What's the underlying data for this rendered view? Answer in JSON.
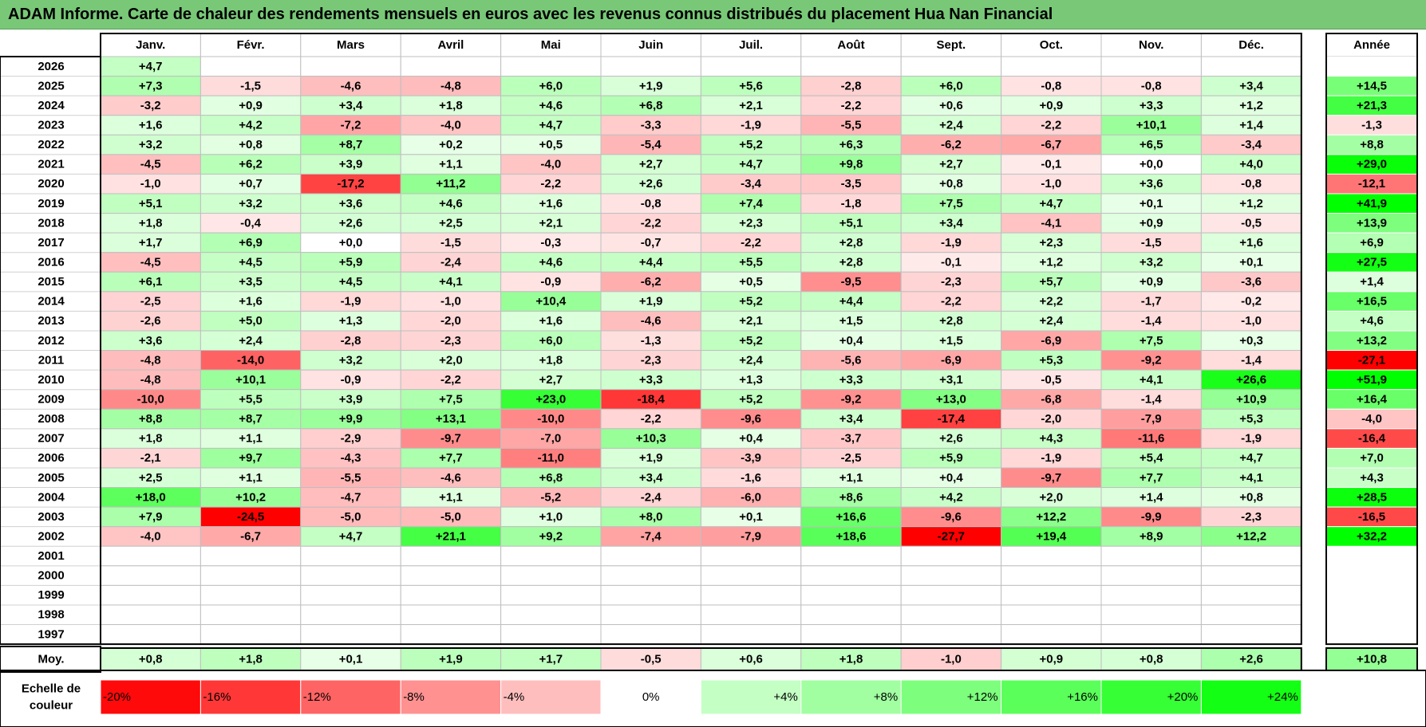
{
  "title": "ADAM Informe. Carte de chaleur des rendements mensuels en euros avec les revenus connus distribués du placement Hua Nan Financial",
  "chart_data": {
    "type": "heatmap",
    "months": [
      "Janv.",
      "Févr.",
      "Mars",
      "Avril",
      "Mai",
      "Juin",
      "Juil.",
      "Août",
      "Sept.",
      "Oct.",
      "Nov.",
      "Déc."
    ],
    "year_header": "Année",
    "rows": [
      {
        "year": "2026",
        "values": [
          "+4,7",
          "",
          "",
          "",
          "",
          "",
          "",
          "",
          "",
          "",
          "",
          ""
        ],
        "annual": ""
      },
      {
        "year": "2025",
        "values": [
          "+7,3",
          "-1,5",
          "-4,6",
          "-4,8",
          "+6,0",
          "+1,9",
          "+5,6",
          "-2,8",
          "+6,0",
          "-0,8",
          "-0,8",
          "+3,4"
        ],
        "annual": "+14,5"
      },
      {
        "year": "2024",
        "values": [
          "-3,2",
          "+0,9",
          "+3,4",
          "+1,8",
          "+4,6",
          "+6,8",
          "+2,1",
          "-2,2",
          "+0,6",
          "+0,9",
          "+3,3",
          "+1,2"
        ],
        "annual": "+21,3"
      },
      {
        "year": "2023",
        "values": [
          "+1,6",
          "+4,2",
          "-7,2",
          "-4,0",
          "+4,7",
          "-3,3",
          "-1,9",
          "-5,5",
          "+2,4",
          "-2,2",
          "+10,1",
          "+1,4"
        ],
        "annual": "-1,3"
      },
      {
        "year": "2022",
        "values": [
          "+3,2",
          "+0,8",
          "+8,7",
          "+0,2",
          "+0,5",
          "-5,4",
          "+5,2",
          "+6,3",
          "-6,2",
          "-6,7",
          "+6,5",
          "-3,4"
        ],
        "annual": "+8,8"
      },
      {
        "year": "2021",
        "values": [
          "-4,5",
          "+6,2",
          "+3,9",
          "+1,1",
          "-4,0",
          "+2,7",
          "+4,7",
          "+9,8",
          "+2,7",
          "-0,1",
          "+0,0",
          "+4,0"
        ],
        "annual": "+29,0"
      },
      {
        "year": "2020",
        "values": [
          "-1,0",
          "+0,7",
          "-17,2",
          "+11,2",
          "-2,2",
          "+2,6",
          "-3,4",
          "-3,5",
          "+0,8",
          "-1,0",
          "+3,6",
          "-0,8"
        ],
        "annual": "-12,1"
      },
      {
        "year": "2019",
        "values": [
          "+5,1",
          "+3,2",
          "+3,6",
          "+4,6",
          "+1,6",
          "-0,8",
          "+7,4",
          "-1,8",
          "+7,5",
          "+4,7",
          "+0,1",
          "+1,2"
        ],
        "annual": "+41,9"
      },
      {
        "year": "2018",
        "values": [
          "+1,8",
          "-0,4",
          "+2,6",
          "+2,5",
          "+2,1",
          "-2,2",
          "+2,3",
          "+5,1",
          "+3,4",
          "-4,1",
          "+0,9",
          "-0,5"
        ],
        "annual": "+13,9"
      },
      {
        "year": "2017",
        "values": [
          "+1,7",
          "+6,9",
          "+0,0",
          "-1,5",
          "-0,3",
          "-0,7",
          "-2,2",
          "+2,8",
          "-1,9",
          "+2,3",
          "-1,5",
          "+1,6"
        ],
        "annual": "+6,9"
      },
      {
        "year": "2016",
        "values": [
          "-4,5",
          "+4,5",
          "+5,9",
          "-2,4",
          "+4,6",
          "+4,4",
          "+5,5",
          "+2,8",
          "-0,1",
          "+1,2",
          "+3,2",
          "+0,1"
        ],
        "annual": "+27,5"
      },
      {
        "year": "2015",
        "values": [
          "+6,1",
          "+3,5",
          "+4,5",
          "+4,1",
          "-0,9",
          "-6,2",
          "+0,5",
          "-9,5",
          "-2,3",
          "+5,7",
          "+0,9",
          "-3,6"
        ],
        "annual": "+1,4"
      },
      {
        "year": "2014",
        "values": [
          "-2,5",
          "+1,6",
          "-1,9",
          "-1,0",
          "+10,4",
          "+1,9",
          "+5,2",
          "+4,4",
          "-2,2",
          "+2,2",
          "-1,7",
          "-0,2"
        ],
        "annual": "+16,5"
      },
      {
        "year": "2013",
        "values": [
          "-2,6",
          "+5,0",
          "+1,3",
          "-2,0",
          "+1,6",
          "-4,6",
          "+2,1",
          "+1,5",
          "+2,8",
          "+2,4",
          "-1,4",
          "-1,0"
        ],
        "annual": "+4,6"
      },
      {
        "year": "2012",
        "values": [
          "+3,6",
          "+2,4",
          "-2,8",
          "-2,3",
          "+6,0",
          "-1,3",
          "+5,2",
          "+0,4",
          "+1,5",
          "-6,9",
          "+7,5",
          "+0,3"
        ],
        "annual": "+13,2"
      },
      {
        "year": "2011",
        "values": [
          "-4,8",
          "-14,0",
          "+3,2",
          "+2,0",
          "+1,8",
          "-2,3",
          "+2,4",
          "-5,6",
          "-6,9",
          "+5,3",
          "-9,2",
          "-1,4"
        ],
        "annual": "-27,1"
      },
      {
        "year": "2010",
        "values": [
          "-4,8",
          "+10,1",
          "-0,9",
          "-2,2",
          "+2,7",
          "+3,3",
          "+1,3",
          "+3,3",
          "+3,1",
          "-0,5",
          "+4,1",
          "+26,6"
        ],
        "annual": "+51,9"
      },
      {
        "year": "2009",
        "values": [
          "-10,0",
          "+5,5",
          "+3,9",
          "+7,5",
          "+23,0",
          "-18,4",
          "+5,2",
          "-9,2",
          "+13,0",
          "-6,8",
          "-1,4",
          "+10,9"
        ],
        "annual": "+16,4"
      },
      {
        "year": "2008",
        "values": [
          "+8,8",
          "+8,7",
          "+9,9",
          "+13,1",
          "-10,0",
          "-2,2",
          "-9,6",
          "+3,4",
          "-17,4",
          "-2,0",
          "-7,9",
          "+5,3"
        ],
        "annual": "-4,0"
      },
      {
        "year": "2007",
        "values": [
          "+1,8",
          "+1,1",
          "-2,9",
          "-9,7",
          "-7,0",
          "+10,3",
          "+0,4",
          "-3,7",
          "+2,6",
          "+4,3",
          "-11,6",
          "-1,9"
        ],
        "annual": "-16,4"
      },
      {
        "year": "2006",
        "values": [
          "-2,1",
          "+9,7",
          "-4,3",
          "+7,7",
          "-11,0",
          "+1,9",
          "-3,9",
          "-2,5",
          "+5,9",
          "-1,9",
          "+5,4",
          "+4,7"
        ],
        "annual": "+7,0"
      },
      {
        "year": "2005",
        "values": [
          "+2,5",
          "+1,1",
          "-5,5",
          "-4,6",
          "+6,8",
          "+3,4",
          "-1,6",
          "+1,1",
          "+0,4",
          "-9,7",
          "+7,7",
          "+4,1"
        ],
        "annual": "+4,3"
      },
      {
        "year": "2004",
        "values": [
          "+18,0",
          "+10,2",
          "-4,7",
          "+1,1",
          "-5,2",
          "-2,4",
          "-6,0",
          "+8,6",
          "+4,2",
          "+2,0",
          "+1,4",
          "+0,8"
        ],
        "annual": "+28,5"
      },
      {
        "year": "2003",
        "values": [
          "+7,9",
          "-24,5",
          "-5,0",
          "-5,0",
          "+1,0",
          "+8,0",
          "+0,1",
          "+16,6",
          "-9,6",
          "+12,2",
          "-9,9",
          "-2,3"
        ],
        "annual": "-16,5"
      },
      {
        "year": "2002",
        "values": [
          "-4,0",
          "-6,7",
          "+4,7",
          "+21,1",
          "+9,2",
          "-7,4",
          "-7,9",
          "+18,6",
          "-27,7",
          "+19,4",
          "+8,9",
          "+12,2"
        ],
        "annual": "+32,2"
      },
      {
        "year": "2001",
        "values": [
          "",
          "",
          "",
          "",
          "",
          "",
          "",
          "",
          "",
          "",
          "",
          ""
        ],
        "annual": ""
      },
      {
        "year": "2000",
        "values": [
          "",
          "",
          "",
          "",
          "",
          "",
          "",
          "",
          "",
          "",
          "",
          ""
        ],
        "annual": ""
      },
      {
        "year": "1999",
        "values": [
          "",
          "",
          "",
          "",
          "",
          "",
          "",
          "",
          "",
          "",
          "",
          ""
        ],
        "annual": ""
      },
      {
        "year": "1998",
        "values": [
          "",
          "",
          "",
          "",
          "",
          "",
          "",
          "",
          "",
          "",
          "",
          ""
        ],
        "annual": ""
      },
      {
        "year": "1997",
        "values": [
          "",
          "",
          "",
          "",
          "",
          "",
          "",
          "",
          "",
          "",
          "",
          ""
        ],
        "annual": ""
      }
    ],
    "average": {
      "label": "Moy.",
      "values": [
        "+0,8",
        "+1,8",
        "+0,1",
        "+1,9",
        "+1,7",
        "-0,5",
        "+0,6",
        "+1,8",
        "-1,0",
        "+0,9",
        "+0,8",
        "+2,6"
      ],
      "annual": "+10,8"
    },
    "scale": {
      "label": "Echelle de couleur",
      "steps": [
        "-20%",
        "-16%",
        "-12%",
        "-8%",
        "-4%",
        "0%",
        "+4%",
        "+8%",
        "+12%",
        "+16%",
        "+20%",
        "+24%"
      ]
    },
    "colors": {
      "negative_max": "#ff0000",
      "neutral": "#ffffff",
      "positive_max": "#00ff00",
      "title_bar": "#78c878"
    }
  }
}
